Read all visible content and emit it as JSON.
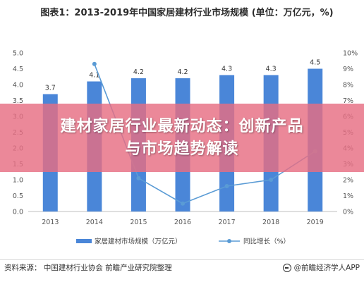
{
  "chart_data": {
    "type": "bar",
    "title": "图表1：2013-2019年中国家居建材行业市场规模 (单位：万亿元，%)",
    "categories": [
      "2013",
      "2014",
      "2015",
      "2016",
      "2017",
      "2018",
      "2019"
    ],
    "series": [
      {
        "name": "家居建材市场规模（万亿元）",
        "type": "bar",
        "axis": "left",
        "color": "#4a86d8",
        "values": [
          3.7,
          4.1,
          4.2,
          4.2,
          4.3,
          4.3,
          4.5
        ]
      },
      {
        "name": "同比增长（%）",
        "type": "line",
        "axis": "right",
        "color": "#5a9bd5",
        "values": [
          null,
          9.3,
          2.1,
          0.5,
          1.6,
          2.0,
          3.8
        ]
      }
    ],
    "left_axis": {
      "min": 0,
      "max": 5,
      "step": 0.5,
      "ticks": [
        "0.0",
        "0.5",
        "1.0",
        "1.5",
        "2.0",
        "2.5",
        "3.0",
        "3.5",
        "4.0",
        "4.5",
        "5.0"
      ]
    },
    "right_axis": {
      "min": 0,
      "max": 10,
      "step": 1,
      "ticks": [
        "0%",
        "1%",
        "2%",
        "3%",
        "4%",
        "5%",
        "6%",
        "7%",
        "8%",
        "9%",
        "10%"
      ]
    },
    "grid": false,
    "legend_position": "bottom"
  },
  "banner": {
    "text": "建材家居行业最新动态：创新产品与市场趋势解读",
    "color": "#e66e82"
  },
  "footer": {
    "source": "资料来源： 中国建材行业协会 前瞻产业研究院整理",
    "brand": "@前瞻经济学人APP"
  }
}
